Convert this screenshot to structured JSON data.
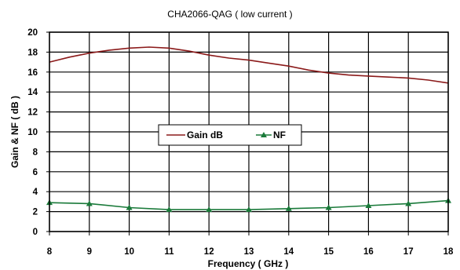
{
  "chart_data": {
    "type": "line",
    "title": "CHA2066-QAG ( low current )",
    "xlabel": "Frequency ( GHz )",
    "ylabel": "Gain & NF ( dB )",
    "xlim": [
      8,
      18
    ],
    "ylim": [
      0,
      20
    ],
    "x_ticks": [
      8,
      9,
      10,
      11,
      12,
      13,
      14,
      15,
      16,
      17,
      18
    ],
    "y_ticks": [
      0,
      2,
      4,
      6,
      8,
      10,
      12,
      14,
      16,
      18,
      20
    ],
    "grid": true,
    "legend_position": "center",
    "series": [
      {
        "name": "Gain dB",
        "color": "#8b1a1a",
        "marker": "none",
        "x": [
          8,
          8.5,
          9,
          9.5,
          10,
          10.5,
          11,
          11.5,
          12,
          12.5,
          13,
          13.5,
          14,
          14.5,
          15,
          15.5,
          16,
          16.5,
          17,
          17.5,
          18
        ],
        "y": [
          17.0,
          17.5,
          17.9,
          18.2,
          18.4,
          18.5,
          18.4,
          18.1,
          17.7,
          17.4,
          17.2,
          16.9,
          16.6,
          16.2,
          15.9,
          15.7,
          15.6,
          15.5,
          15.4,
          15.2,
          14.9
        ]
      },
      {
        "name": "NF",
        "color": "#1a7a3a",
        "marker": "triangle",
        "x": [
          8,
          9,
          10,
          11,
          12,
          13,
          14,
          15,
          16,
          17,
          18
        ],
        "y": [
          2.9,
          2.8,
          2.4,
          2.2,
          2.2,
          2.2,
          2.3,
          2.4,
          2.6,
          2.8,
          3.1
        ]
      }
    ]
  }
}
